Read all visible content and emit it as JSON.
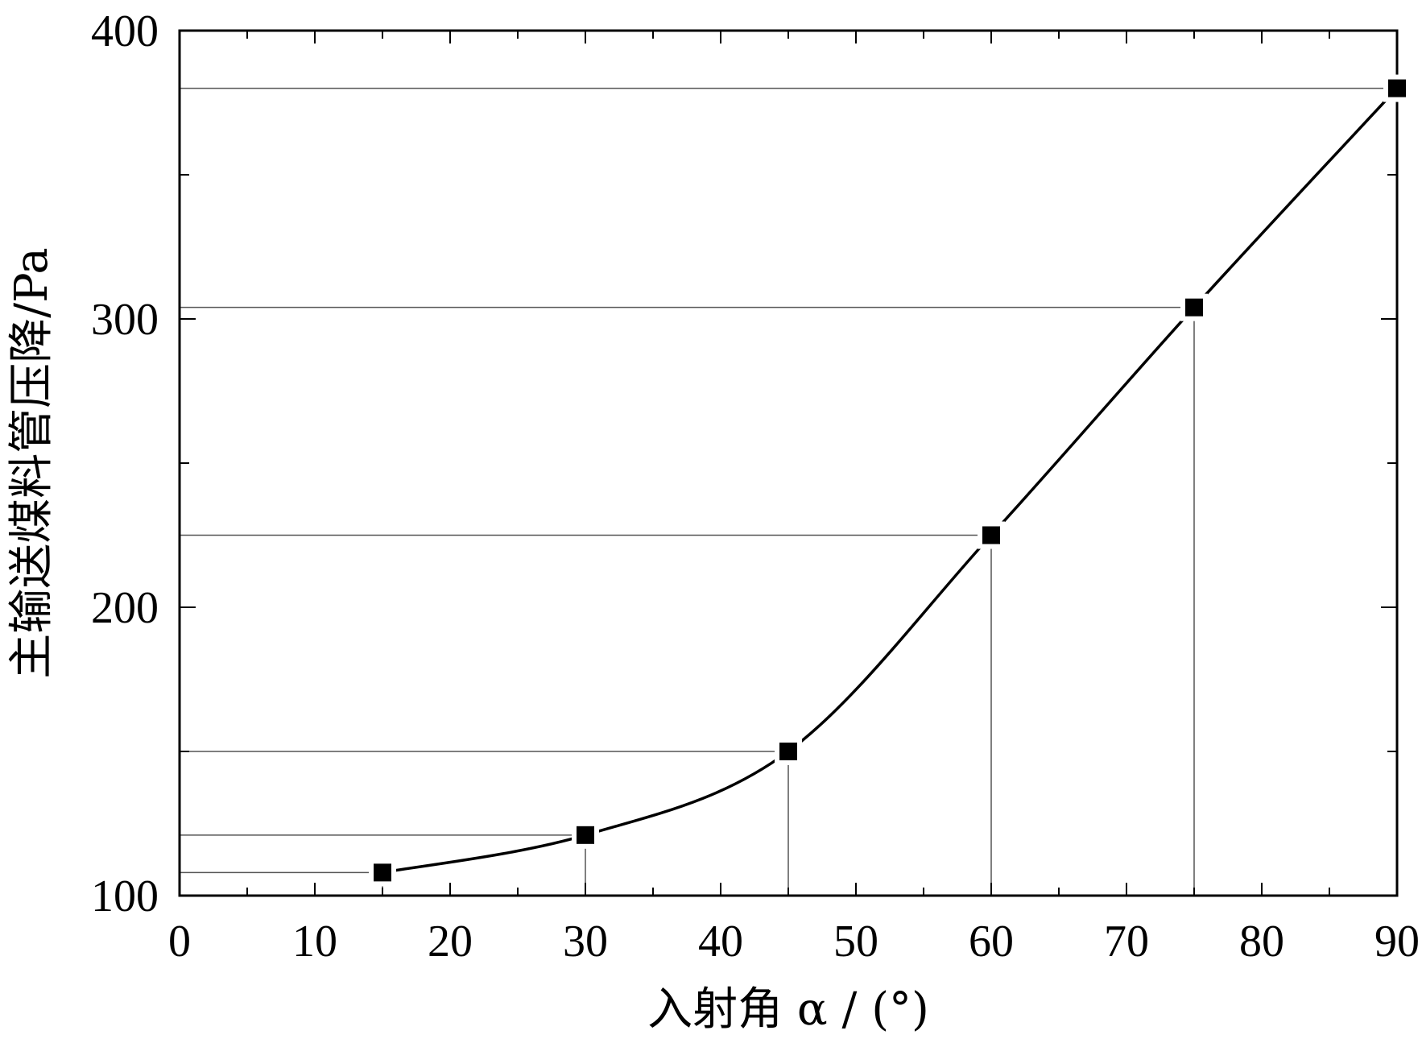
{
  "chart_data": {
    "type": "line",
    "xlabel": "入射角 α / (°)",
    "ylabel": "主输送煤料管压降/Pa",
    "xlim": [
      0,
      90
    ],
    "ylim": [
      100,
      400
    ],
    "x_ticks": [
      0,
      10,
      20,
      30,
      40,
      50,
      60,
      70,
      80,
      90
    ],
    "y_ticks": [
      100,
      200,
      300,
      400
    ],
    "grid": false,
    "legend": "none",
    "series": [
      {
        "marker": "square",
        "x": [
          15,
          30,
          45,
          60,
          75,
          90
        ],
        "y": [
          108,
          121,
          150,
          225,
          304,
          380
        ]
      }
    ],
    "colors": {
      "line": "#000000",
      "reference_line": "#555555"
    }
  }
}
